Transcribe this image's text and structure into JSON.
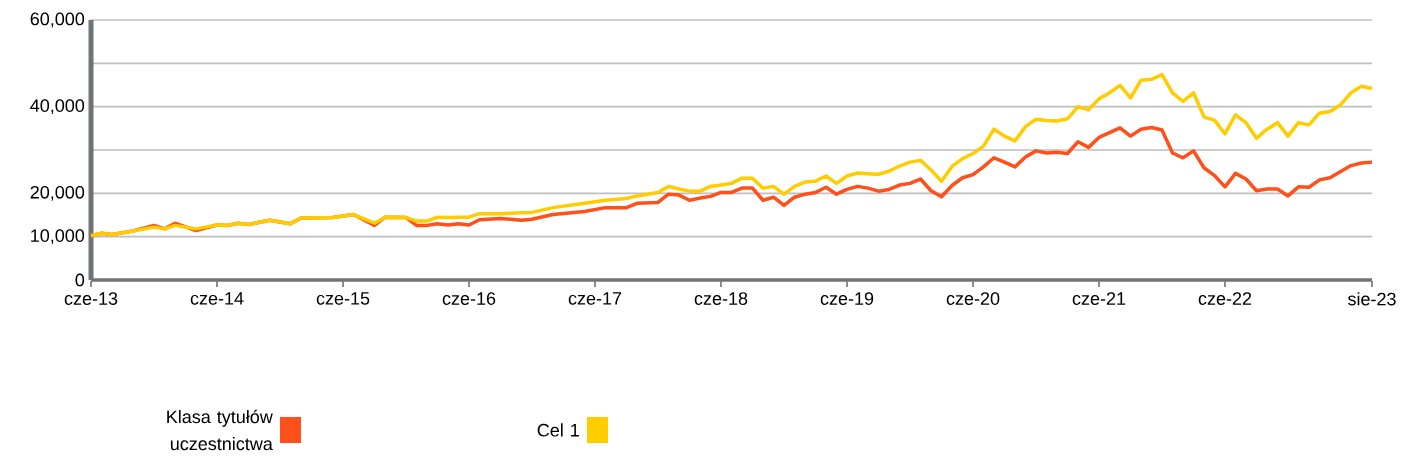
{
  "chart_data": {
    "type": "line",
    "x": [
      "2013-06",
      "2013-07",
      "2013-08",
      "2013-10",
      "2013-12",
      "2014-01",
      "2014-02",
      "2014-04",
      "2014-06",
      "2014-07",
      "2014-08",
      "2014-09",
      "2014-11",
      "2015-01",
      "2015-02",
      "2015-05",
      "2015-07",
      "2015-09",
      "2015-10",
      "2015-12",
      "2016-01",
      "2016-02",
      "2016-03",
      "2016-04",
      "2016-05",
      "2016-06",
      "2016-07",
      "2016-09",
      "2016-11",
      "2016-12",
      "2017-02",
      "2017-05",
      "2017-07",
      "2017-09",
      "2017-10",
      "2017-12",
      "2018-01",
      "2018-02",
      "2018-03",
      "2018-04",
      "2018-05",
      "2018-06",
      "2018-07",
      "2018-08",
      "2018-09",
      "2018-10",
      "2018-11",
      "2018-12",
      "2019-01",
      "2019-02",
      "2019-03",
      "2019-04",
      "2019-05",
      "2019-06",
      "2019-07",
      "2019-08",
      "2019-09",
      "2019-10",
      "2019-11",
      "2019-12",
      "2020-01",
      "2020-02",
      "2020-03",
      "2020-04",
      "2020-05",
      "2020-06",
      "2020-07",
      "2020-08",
      "2020-09",
      "2020-10",
      "2020-11",
      "2020-12",
      "2021-01",
      "2021-02",
      "2021-03",
      "2021-04",
      "2021-05",
      "2021-06",
      "2021-07",
      "2021-08",
      "2021-09",
      "2021-10",
      "2021-11",
      "2021-12",
      "2022-01",
      "2022-02",
      "2022-03",
      "2022-04",
      "2022-05",
      "2022-06",
      "2022-07",
      "2022-08",
      "2022-09",
      "2022-10",
      "2022-11",
      "2022-12",
      "2023-01",
      "2023-02",
      "2023-03",
      "2023-04",
      "2023-05",
      "2023-06",
      "2023-07",
      "2023-08"
    ],
    "series": [
      {
        "name": "Klasa tytułów uczestnictwa",
        "color": "#ff4f1a",
        "values": [
          10200,
          10800,
          10500,
          11300,
          12600,
          11800,
          13100,
          11400,
          12700,
          12600,
          13100,
          12800,
          13800,
          13000,
          14300,
          14400,
          15100,
          12600,
          14500,
          14400,
          12600,
          12600,
          13000,
          12700,
          13000,
          12700,
          13900,
          14200,
          13800,
          14000,
          15100,
          15800,
          16700,
          16700,
          17700,
          17900,
          19800,
          19600,
          18400,
          18900,
          19300,
          20200,
          20200,
          21200,
          21200,
          18400,
          19100,
          17200,
          19100,
          19800,
          20200,
          21400,
          19800,
          20900,
          21600,
          21200,
          20500,
          20900,
          21900,
          22300,
          23300,
          20600,
          19200,
          21800,
          23600,
          24300,
          26100,
          28200,
          27200,
          26100,
          28400,
          29800,
          29300,
          29500,
          29200,
          31900,
          30600,
          32900,
          34000,
          35100,
          33200,
          34800,
          35200,
          34600,
          29300,
          28200,
          29800,
          25900,
          24100,
          21500,
          24600,
          23300,
          20600,
          21000,
          21000,
          19400,
          21500,
          21400,
          23100,
          23600,
          25000,
          26400,
          27000,
          27200
        ]
      },
      {
        "name": "Cel 1",
        "color": "#ffcc00",
        "values": [
          10200,
          10800,
          10500,
          11300,
          12200,
          11800,
          12600,
          11800,
          12700,
          12600,
          13100,
          12800,
          13800,
          13000,
          14300,
          14400,
          15100,
          13100,
          14500,
          14400,
          13600,
          13600,
          14500,
          14400,
          14500,
          14500,
          15300,
          15300,
          15500,
          15600,
          16700,
          17700,
          18400,
          18800,
          19400,
          20200,
          21600,
          21000,
          20500,
          20500,
          21600,
          21900,
          22300,
          23500,
          23500,
          21200,
          21600,
          19800,
          21600,
          22600,
          22800,
          24000,
          22300,
          24000,
          24700,
          24500,
          24400,
          25100,
          26300,
          27200,
          27600,
          25400,
          22800,
          26200,
          28000,
          29200,
          30900,
          34800,
          33200,
          32100,
          35400,
          37100,
          36800,
          36700,
          37200,
          40000,
          39300,
          41800,
          43200,
          44900,
          42000,
          46100,
          46300,
          47400,
          43200,
          41200,
          43200,
          37600,
          36900,
          33700,
          38100,
          36300,
          32700,
          34800,
          36300,
          33200,
          36300,
          35800,
          38500,
          38900,
          40400,
          43200,
          44700,
          44200
        ]
      }
    ],
    "xlim": [
      "2013-06",
      "2023-08"
    ],
    "xticks": [
      {
        "value": "2013-06",
        "label": "cze-13"
      },
      {
        "value": "2014-06",
        "label": "cze-14"
      },
      {
        "value": "2015-06",
        "label": "cze-15"
      },
      {
        "value": "2016-06",
        "label": "cze-16"
      },
      {
        "value": "2017-06",
        "label": "cze-17"
      },
      {
        "value": "2018-06",
        "label": "cze-18"
      },
      {
        "value": "2019-06",
        "label": "cze-19"
      },
      {
        "value": "2020-06",
        "label": "cze-20"
      },
      {
        "value": "2021-06",
        "label": "cze-21"
      },
      {
        "value": "2022-06",
        "label": "cze-22"
      },
      {
        "value": "2023-08",
        "label": "sie-23"
      }
    ],
    "ylim": [
      0,
      60000
    ],
    "yticks": [
      0,
      {
        "value": 10000,
        "label": "10,000"
      },
      {
        "value": 20000,
        "label": "20,000"
      },
      {
        "value": 30000,
        "label": null
      },
      {
        "value": 40000,
        "label": "40,000"
      },
      {
        "value": 50000,
        "label": null
      },
      {
        "value": 60000,
        "label": "60,000"
      }
    ],
    "grid": "y",
    "legend": "bottom",
    "line_style": "solid"
  }
}
